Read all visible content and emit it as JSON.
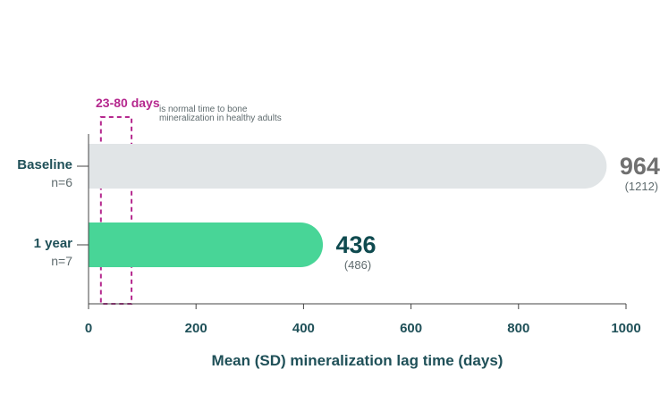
{
  "chart_data": {
    "type": "bar",
    "orientation": "horizontal",
    "xlabel": "Mean (SD) mineralization lag time (days)",
    "xlim": [
      0,
      1000
    ],
    "xticks": [
      "0",
      "200",
      "400",
      "600",
      "800",
      "1000"
    ],
    "grid": false,
    "bars": [
      {
        "category": "Baseline",
        "n": "n=6",
        "value": 964,
        "value_label": "964",
        "sd_label": "(1212)",
        "color": "#e1e5e7",
        "value_color": "#707070"
      },
      {
        "category": "1 year",
        "n": "n=7",
        "value": 436,
        "value_label": "436",
        "sd_label": "(486)",
        "color": "#48d597",
        "value_color": "#0f4a4f"
      }
    ],
    "reference_band": {
      "range": [
        23,
        80
      ],
      "label": "23-80 days",
      "note_line1": "is normal time to bone",
      "note_line2": "mineralization in healthy adults",
      "color": "#b5288e"
    }
  }
}
